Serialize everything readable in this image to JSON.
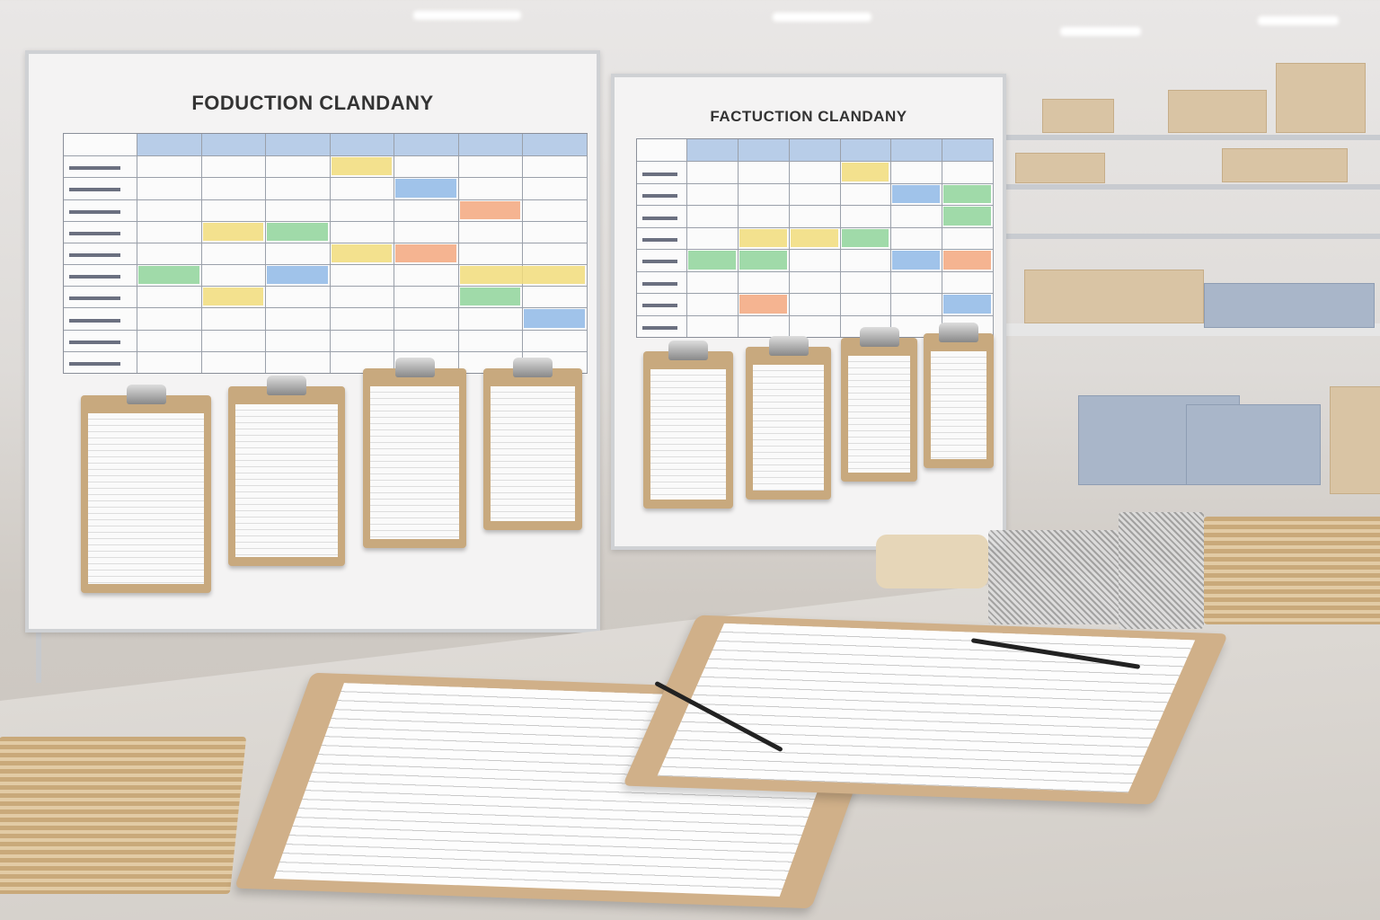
{
  "scene": "warehouse office",
  "boards": [
    {
      "title": "FODUCTION CLANDANY"
    },
    {
      "title": "FACTUCTION CLANDANY"
    }
  ],
  "colors": {
    "blue": "#8fb8e6",
    "yellow": "#f1dc7a",
    "green": "#8fd39a",
    "orange": "#f3a77e",
    "board": "#f4f3f3",
    "clipboard": "#c8a97e"
  }
}
